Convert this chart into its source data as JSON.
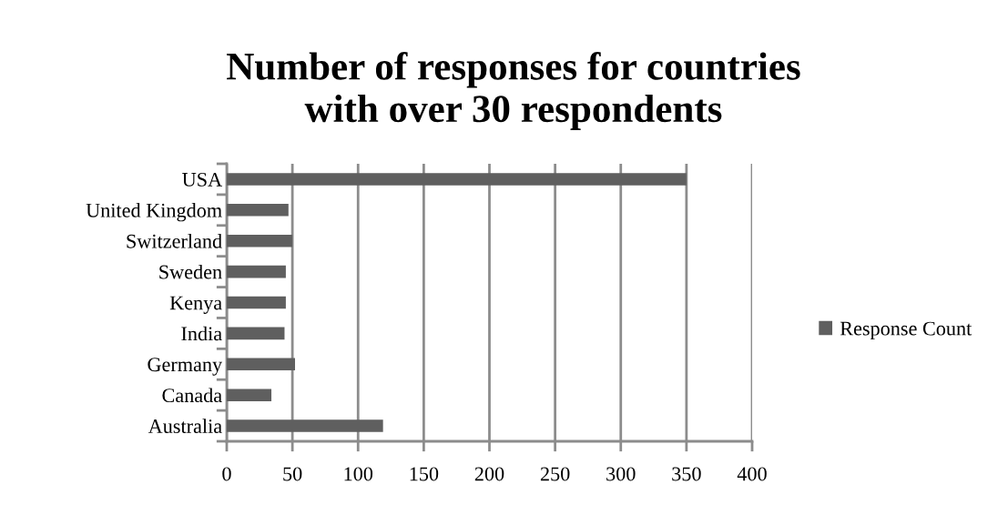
{
  "chart_data": {
    "type": "bar",
    "orientation": "horizontal",
    "title": "Number of responses for countries\nwith over 30 respondents",
    "categories": [
      "USA",
      "United Kingdom",
      "Switzerland",
      "Sweden",
      "Kenya",
      "India",
      "Germany",
      "Canada",
      "Australia"
    ],
    "series": [
      {
        "name": "Response Count",
        "color": "#5f5f5f",
        "values": [
          350,
          47,
          50,
          45,
          45,
          44,
          52,
          34,
          119
        ]
      }
    ],
    "xlim": [
      0,
      400
    ],
    "xticks": [
      0,
      50,
      100,
      150,
      200,
      250,
      300,
      350,
      400
    ],
    "grid": "x",
    "legend": "right"
  }
}
